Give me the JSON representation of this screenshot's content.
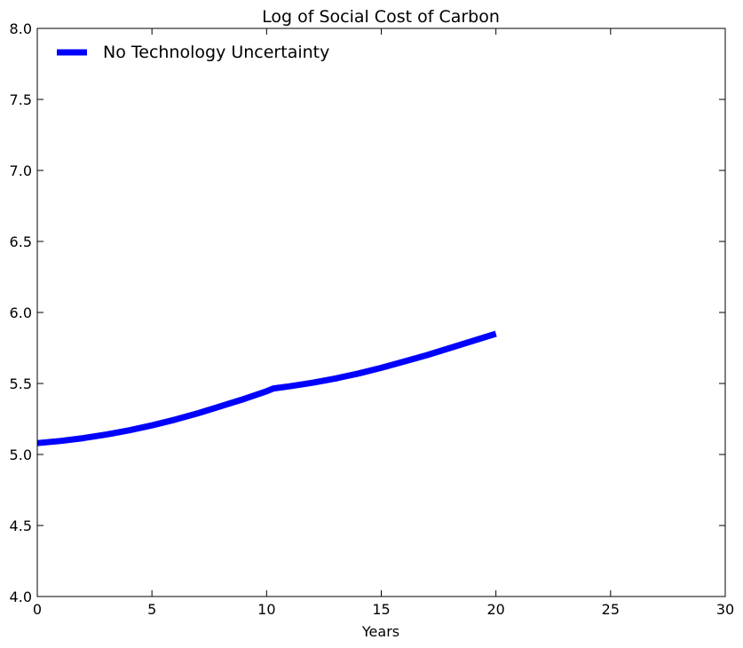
{
  "chart_data": {
    "type": "line",
    "title": "Log of Social Cost of Carbon",
    "xlabel": "Years",
    "ylabel": "",
    "xlim": [
      0,
      30
    ],
    "ylim": [
      4.0,
      8.0
    ],
    "xticks": [
      0,
      5,
      10,
      15,
      20,
      25,
      30
    ],
    "xtick_labels": [
      "0",
      "5",
      "10",
      "15",
      "20",
      "25",
      "30"
    ],
    "yticks": [
      4.0,
      4.5,
      5.0,
      5.5,
      6.0,
      6.5,
      7.0,
      7.5,
      8.0
    ],
    "ytick_labels": [
      "4.0",
      "4.5",
      "5.0",
      "5.5",
      "6.0",
      "6.5",
      "7.0",
      "7.5",
      "8.0"
    ],
    "grid": false,
    "legend": {
      "position": "top-left"
    },
    "series": [
      {
        "name": "No Technology Uncertainty",
        "color": "#0000ff",
        "x": [
          0,
          1,
          2,
          3,
          4,
          5,
          6,
          7,
          8,
          9,
          10,
          10.3,
          11,
          12,
          13,
          14,
          15,
          16,
          17,
          18,
          19,
          20
        ],
        "y": [
          5.08,
          5.095,
          5.115,
          5.14,
          5.17,
          5.205,
          5.245,
          5.29,
          5.34,
          5.39,
          5.445,
          5.465,
          5.48,
          5.505,
          5.535,
          5.57,
          5.61,
          5.655,
          5.7,
          5.75,
          5.8,
          5.85
        ]
      }
    ]
  }
}
